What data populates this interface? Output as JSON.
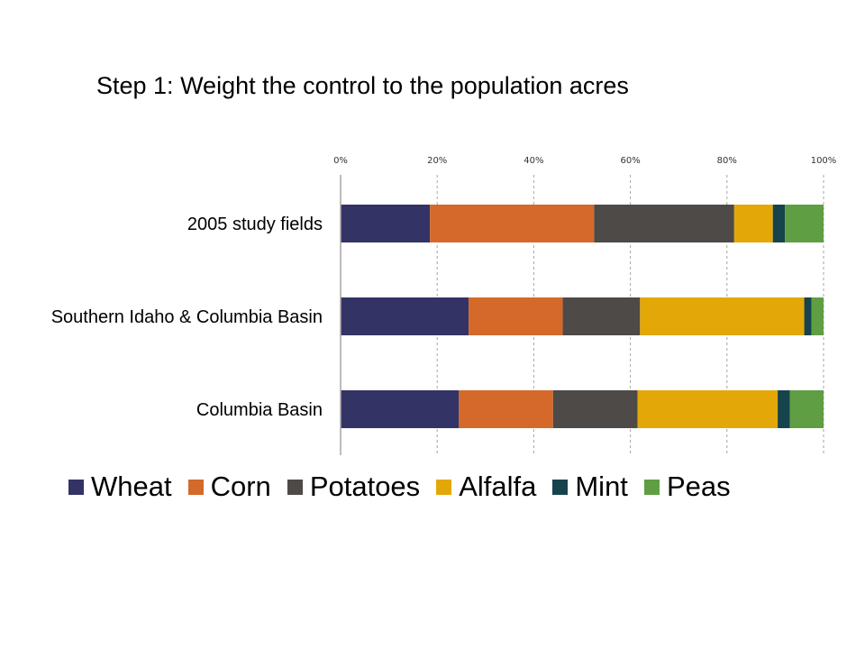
{
  "slide": {
    "title": "Step 1: Weight the control to the population acres"
  },
  "chart_data": {
    "type": "bar",
    "orientation": "horizontal",
    "stacked": "percent",
    "categories": [
      "2005 study fields",
      "Southern Idaho & Columbia Basin",
      "Columbia Basin"
    ],
    "x_ticks": [
      "0%",
      "20%",
      "40%",
      "60%",
      "80%",
      "100%"
    ],
    "xlim": [
      0,
      100
    ],
    "grid": "vertical dashed",
    "legend_position": "bottom",
    "series": [
      {
        "name": "Wheat",
        "color": "#333366",
        "values": [
          18.5,
          26.5,
          24.5
        ]
      },
      {
        "name": "Corn",
        "color": "#d4692a",
        "values": [
          34,
          19.5,
          19.5
        ]
      },
      {
        "name": "Potatoes",
        "color": "#4d4a47",
        "values": [
          29,
          16,
          17.5
        ]
      },
      {
        "name": "Alfalfa",
        "color": "#e3a808",
        "values": [
          8,
          34,
          29
        ]
      },
      {
        "name": "Mint",
        "color": "#17434d",
        "values": [
          2.5,
          1.5,
          2.5
        ]
      },
      {
        "name": "Peas",
        "color": "#5f9e43",
        "values": [
          8,
          2.5,
          7
        ]
      }
    ]
  }
}
